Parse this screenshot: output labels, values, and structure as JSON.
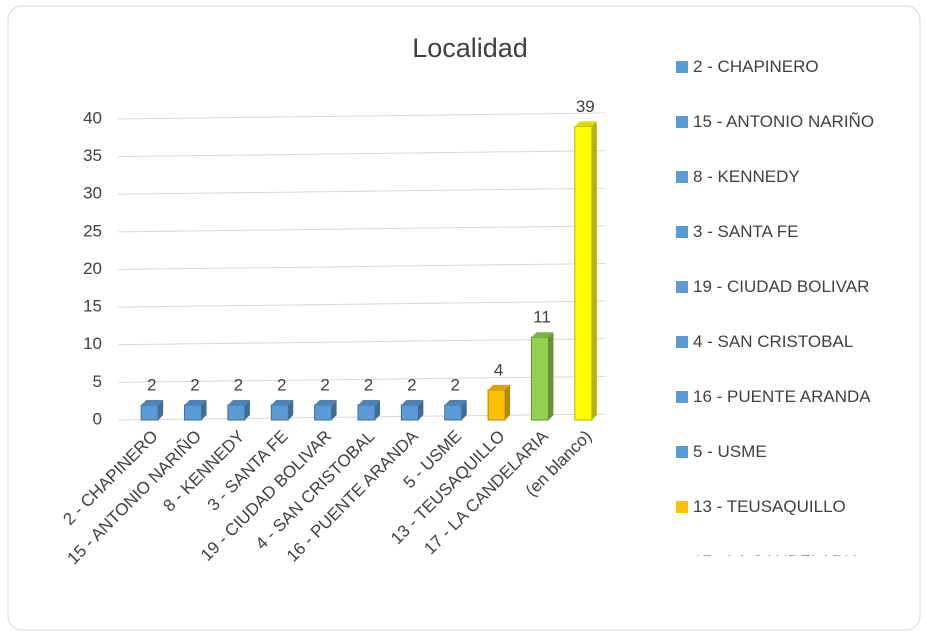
{
  "chart_data": {
    "type": "bar",
    "title": "Localidad",
    "categories": [
      "2 - CHAPINERO",
      "15 - ANTONIO NARIÑO",
      "8 - KENNEDY",
      "3 - SANTA FE",
      "19 - CIUDAD BOLIVAR",
      "4 - SAN CRISTOBAL",
      "16 - PUENTE ARANDA",
      "5 - USME",
      "13 - TEUSAQUILLO",
      "17 - LA CANDELARIA",
      "(en blanco)"
    ],
    "values": [
      2,
      2,
      2,
      2,
      2,
      2,
      2,
      2,
      4,
      11,
      39
    ],
    "colors": [
      "#5b9bd5",
      "#5b9bd5",
      "#5b9bd5",
      "#5b9bd5",
      "#5b9bd5",
      "#5b9bd5",
      "#5b9bd5",
      "#5b9bd5",
      "#ffc000",
      "#92d050",
      "#ffff00"
    ],
    "ylim": [
      0,
      40
    ],
    "yticks": [
      0,
      5,
      10,
      15,
      20,
      25,
      30,
      35,
      40
    ],
    "grid": true,
    "legend": "right"
  }
}
